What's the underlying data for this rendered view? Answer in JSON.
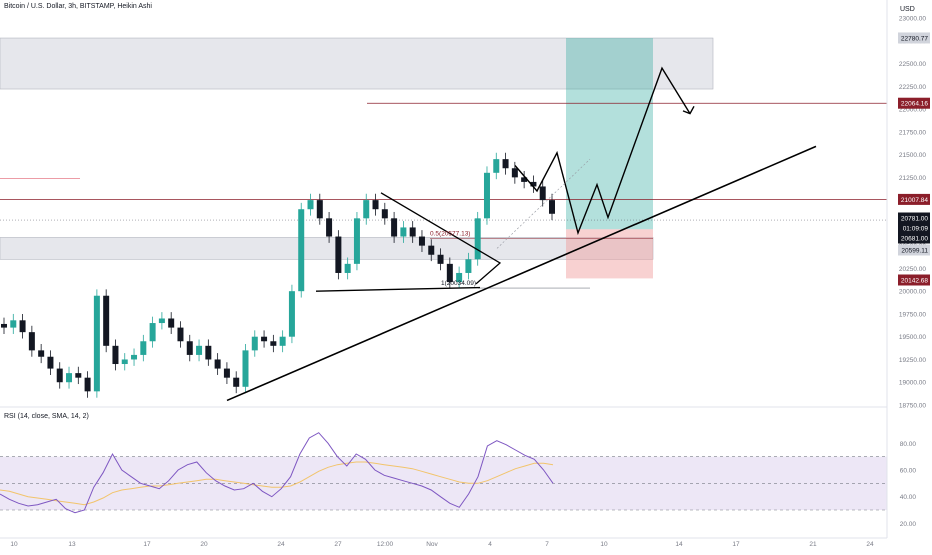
{
  "header": {
    "title": "Bitcoin / U.S. Dollar, 3h, BITSTAMP, Heikin Ashi",
    "currency": "USD"
  },
  "rsi_panel": {
    "label": "RSI (14, close, SMA, 14, 2)"
  },
  "colors": {
    "up": "#26a69a",
    "down": "#131722",
    "rsi_line": "#7e57c2",
    "rsi_sma": "#f2c46b",
    "rsi_band": "#ede7f6",
    "zone": "#d1d4dc",
    "target_zone": "#26a69a",
    "stop_zone": "#ef9a9a",
    "level_line": "#8b1e2a",
    "trend_line": "#000000"
  },
  "chart_data": [
    {
      "type": "candlestick",
      "y_axis_ticks": [
        "23000.00",
        "22750.00",
        "22500.00",
        "22250.00",
        "22000.00",
        "21750.00",
        "21500.00",
        "21250.00",
        "21000.00",
        "20750.00",
        "20500.00",
        "20250.00",
        "20000.00",
        "19750.00",
        "19500.00",
        "19250.00",
        "19000.00",
        "18750.00"
      ],
      "ylim": [
        18750,
        23000
      ],
      "x_axis_ticks": [
        "10",
        "13",
        "17",
        "20",
        "24",
        "27",
        "12:00",
        "Nov",
        "4",
        "7",
        "10",
        "14",
        "17",
        "21",
        "24"
      ],
      "price_labels": [
        {
          "value": "22780.77",
          "style": "neutral"
        },
        {
          "value": "22064.16",
          "style": "level"
        },
        {
          "value": "21007.84",
          "style": "level"
        },
        {
          "value": "20781.00",
          "style": "dark"
        },
        {
          "value": "01:09:09",
          "style": "dark"
        },
        {
          "value": "20681.00",
          "style": "dark"
        },
        {
          "value": "20599.11",
          "style": "neutral"
        },
        {
          "value": "20142.68",
          "style": "level"
        }
      ],
      "annotations": [
        "0.5(20577.13)",
        "1(20034.09)"
      ],
      "candle_series": [
        [
          0,
          19600
        ],
        [
          1,
          19680
        ],
        [
          2,
          19550
        ],
        [
          3,
          19350
        ],
        [
          4,
          19280
        ],
        [
          5,
          19150
        ],
        [
          6,
          19000
        ],
        [
          7,
          19100
        ],
        [
          8,
          19050
        ],
        [
          9,
          18900
        ],
        [
          10,
          19950
        ],
        [
          11,
          19400
        ],
        [
          12,
          19200
        ],
        [
          13,
          19250
        ],
        [
          14,
          19300
        ],
        [
          15,
          19450
        ],
        [
          16,
          19650
        ],
        [
          17,
          19700
        ],
        [
          18,
          19600
        ],
        [
          19,
          19450
        ],
        [
          20,
          19300
        ],
        [
          21,
          19400
        ],
        [
          22,
          19250
        ],
        [
          23,
          19150
        ],
        [
          24,
          19050
        ],
        [
          25,
          18950
        ],
        [
          26,
          19350
        ],
        [
          27,
          19500
        ],
        [
          28,
          19450
        ],
        [
          29,
          19400
        ],
        [
          30,
          19500
        ],
        [
          31,
          20000
        ],
        [
          32,
          20900
        ],
        [
          33,
          21000
        ],
        [
          34,
          20800
        ],
        [
          35,
          20600
        ],
        [
          36,
          20200
        ],
        [
          37,
          20300
        ],
        [
          38,
          20800
        ],
        [
          39,
          21000
        ],
        [
          40,
          20900
        ],
        [
          41,
          20800
        ],
        [
          42,
          20600
        ],
        [
          43,
          20700
        ],
        [
          44,
          20600
        ],
        [
          45,
          20500
        ],
        [
          46,
          20400
        ],
        [
          47,
          20300
        ],
        [
          48,
          20100
        ],
        [
          49,
          20200
        ],
        [
          50,
          20350
        ],
        [
          51,
          20800
        ],
        [
          52,
          21300
        ],
        [
          53,
          21450
        ],
        [
          54,
          21350
        ],
        [
          55,
          21250
        ],
        [
          56,
          21200
        ],
        [
          57,
          21150
        ],
        [
          58,
          21000
        ],
        [
          59,
          20850
        ]
      ]
    },
    {
      "type": "line",
      "title": "RSI (14, close, SMA, 14, 2)",
      "y_axis_ticks": [
        "80.00",
        "60.00",
        "40.00",
        "20.00"
      ],
      "ylim": [
        15,
        90
      ],
      "bands": [
        70,
        50,
        30
      ],
      "series": [
        {
          "values": [
            42,
            38,
            35,
            33,
            34,
            36,
            38,
            31,
            28,
            30,
            47,
            58,
            72,
            60,
            55,
            50,
            48,
            46,
            52,
            60,
            64,
            66,
            58,
            52,
            48,
            45,
            46,
            50,
            44,
            40,
            46,
            55,
            72,
            84,
            88,
            80,
            70,
            63,
            72,
            68,
            60,
            56,
            54,
            52,
            50,
            48,
            45,
            40,
            35,
            32,
            42,
            55,
            78,
            82,
            79,
            75,
            71,
            68,
            60,
            50
          ]
        },
        {
          "values": [
            45,
            44,
            42,
            40,
            39,
            38,
            37,
            36,
            35,
            34,
            36,
            39,
            43,
            45,
            46,
            47,
            48,
            48,
            49,
            50,
            51,
            52,
            53,
            53,
            52,
            51,
            50,
            49,
            48,
            47,
            47,
            48,
            51,
            55,
            59,
            62,
            64,
            65,
            66,
            66,
            65,
            64,
            63,
            62,
            61,
            59,
            57,
            55,
            53,
            51,
            50,
            50,
            52,
            55,
            58,
            61,
            63,
            65,
            65,
            64
          ]
        }
      ]
    }
  ]
}
